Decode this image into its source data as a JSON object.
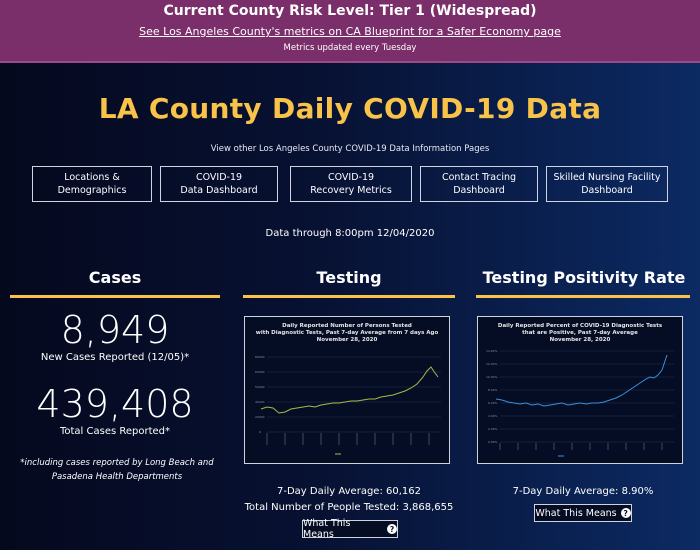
{
  "banner": {
    "title": "Current County Risk Level: Tier 1 (Widespread)",
    "link": "See Los Angeles County's metrics on CA Blueprint for a Safer Economy page",
    "note": "Metrics updated every Tuesday",
    "color": "#7a2f6a"
  },
  "header": {
    "title": "LA County Daily COVID-19 Data",
    "subtitle": "View other Los Angeles County COVID-19 Data Information Pages",
    "title_color": "#f9c349"
  },
  "nav": {
    "b1_l1": "Locations &",
    "b1_l2": "Demographics",
    "b2_l1": "COVID-19",
    "b2_l2": "Data Dashboard",
    "b3_l1": "COVID-19",
    "b3_l2": "Recovery Metrics",
    "b4_l1": "Contact Tracing",
    "b4_l2": "Dashboard",
    "b5_l1": "Skilled Nursing Facility",
    "b5_l2": "Dashboard"
  },
  "data_through": "Data through 8:00pm 12/04/2020",
  "cases": {
    "heading": "Cases",
    "new_cases": "8,949",
    "new_cases_label": "New Cases Reported (12/05)*",
    "total_cases": "439,408",
    "total_cases_label": "Total Cases Reported*",
    "footnote": "*including cases reported by Long Beach and Pasadena Health Departments"
  },
  "testing": {
    "heading": "Testing",
    "chart_title_1": "Daily Reported Number of Persons Tested",
    "chart_title_2": "with Diagnostic Tests, Past 7-day Average from 7 days Ago",
    "chart_title_3": "November 28, 2020",
    "avg_text": "7-Day Daily Average: 60,162",
    "total_text": "Total Number of People Tested: 3,868,655",
    "button": "What This Means",
    "line_color": "#a8b84a"
  },
  "positivity": {
    "heading": "Testing Positivity Rate",
    "chart_title_1": "Daily Reported Percent of COVID-19 Diagnostic Tests",
    "chart_title_2": "that are Positive, Past 7-day Average",
    "chart_title_3": "November 28, 2020",
    "avg_text": "7-Day Daily Average: 8.90%",
    "button": "What This Means",
    "line_color": "#3a8fd9"
  },
  "icons": {
    "help": "question-circle-icon"
  }
}
